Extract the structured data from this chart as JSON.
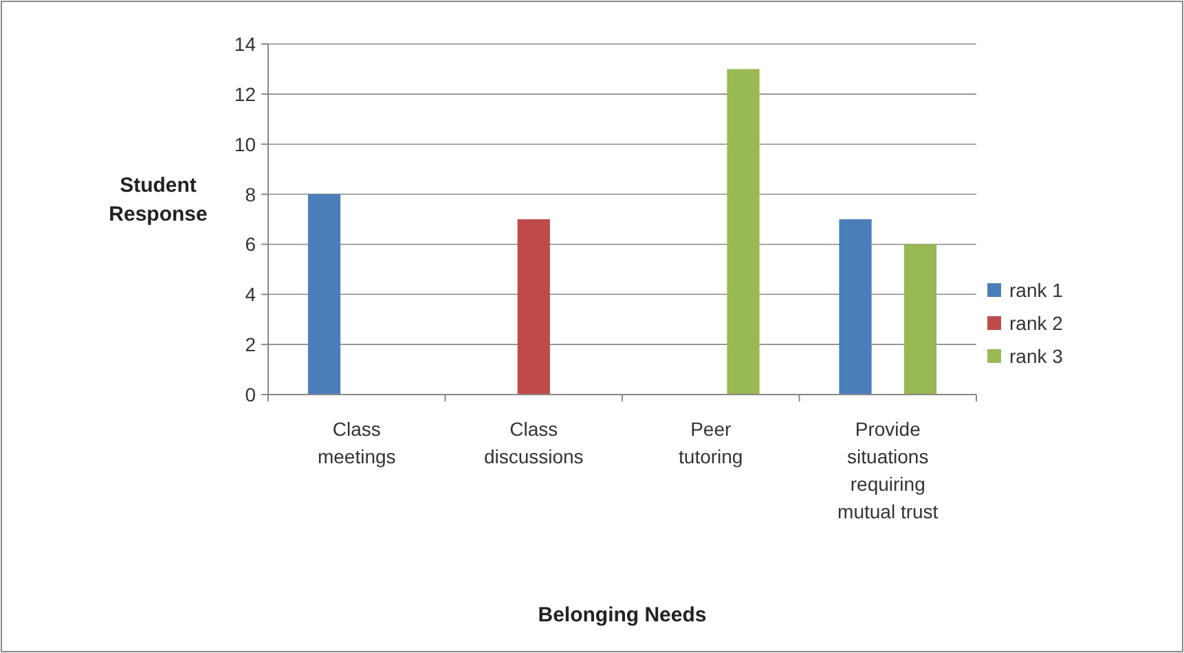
{
  "chart_data": {
    "type": "bar",
    "xlabel": "Belonging Needs",
    "ylabel": "Student Response",
    "categories": [
      "Class meetings",
      "Class discussions",
      "Peer tutoring",
      "Provide situations requiring mutual trust"
    ],
    "series": [
      {
        "name": "rank 1",
        "color": "#4a7ebb",
        "values": [
          8,
          null,
          null,
          7
        ]
      },
      {
        "name": "rank 2",
        "color": "#be4b48",
        "values": [
          null,
          7,
          null,
          null
        ]
      },
      {
        "name": "rank 3",
        "color": "#98b954",
        "values": [
          null,
          null,
          13,
          6
        ]
      }
    ],
    "ylim": [
      0,
      14
    ],
    "yticks": [
      0,
      2,
      4,
      6,
      8,
      10,
      12,
      14
    ],
    "grid": "y",
    "legend": "right"
  }
}
